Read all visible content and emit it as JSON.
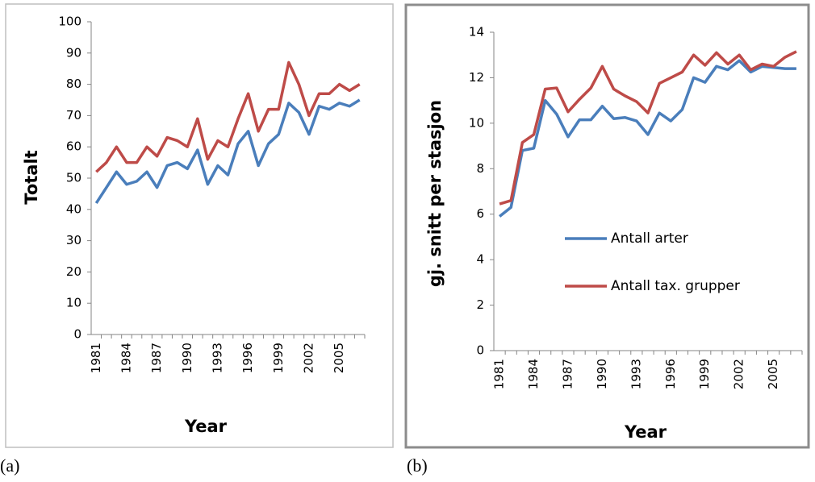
{
  "chart_data": [
    {
      "type": "line",
      "ylabel": "Totalt",
      "xlabel": "Year",
      "x": [
        1981,
        1982,
        1983,
        1984,
        1985,
        1986,
        1987,
        1988,
        1989,
        1990,
        1991,
        1992,
        1993,
        1994,
        1995,
        1996,
        1997,
        1998,
        1999,
        2000,
        2001,
        2002,
        2003,
        2004,
        2005,
        2006,
        2007
      ],
      "xlim": [
        1980.5,
        2007.5
      ],
      "xticks": [
        1981,
        1984,
        1987,
        1990,
        1993,
        1996,
        1999,
        2002,
        2005
      ],
      "ylim": [
        0,
        100
      ],
      "yticks": [
        0,
        10,
        20,
        30,
        40,
        50,
        60,
        70,
        80,
        90,
        100
      ],
      "series": [
        {
          "color": "#4a7ebb",
          "values": [
            42,
            47,
            52,
            48,
            49,
            52,
            47,
            54,
            55,
            53,
            59,
            48,
            54,
            51,
            61,
            65,
            54,
            61,
            64,
            74,
            71,
            64,
            73,
            72,
            74,
            73,
            75
          ]
        },
        {
          "color": "#be4b48",
          "values": [
            52,
            55,
            60,
            55,
            55,
            60,
            57,
            63,
            62,
            60,
            69,
            56,
            62,
            60,
            69,
            77,
            65,
            72,
            72,
            87,
            80,
            70,
            77,
            77,
            80,
            78,
            80
          ]
        }
      ]
    },
    {
      "type": "line",
      "ylabel": "gj. snitt per stasjon",
      "xlabel": "Year",
      "x": [
        1981,
        1982,
        1983,
        1984,
        1985,
        1986,
        1987,
        1988,
        1989,
        1990,
        1991,
        1992,
        1993,
        1994,
        1995,
        1996,
        1997,
        1998,
        1999,
        2000,
        2001,
        2002,
        2003,
        2004,
        2005,
        2006,
        2007
      ],
      "xlim": [
        1980.5,
        2007.5
      ],
      "xticks": [
        1981,
        1984,
        1987,
        1990,
        1993,
        1996,
        1999,
        2002,
        2005
      ],
      "ylim": [
        0,
        14
      ],
      "yticks": [
        0,
        2,
        4,
        6,
        8,
        10,
        12,
        14
      ],
      "legend": "center",
      "series": [
        {
          "name": "Antall arter",
          "color": "#4a7ebb",
          "values": [
            5.9,
            6.3,
            8.8,
            8.9,
            11.0,
            10.4,
            9.4,
            10.15,
            10.15,
            10.75,
            10.2,
            10.25,
            10.1,
            9.5,
            10.45,
            10.1,
            10.6,
            12.0,
            11.8,
            12.5,
            12.35,
            12.75,
            12.25,
            12.5,
            12.45,
            12.4,
            12.4
          ]
        },
        {
          "name": "Antall tax. grupper",
          "color": "#be4b48",
          "values": [
            6.45,
            6.6,
            9.15,
            9.5,
            11.5,
            11.55,
            10.5,
            11.05,
            11.55,
            12.5,
            11.5,
            11.2,
            10.95,
            10.45,
            11.75,
            12.0,
            12.25,
            13.0,
            12.55,
            13.1,
            12.6,
            13.0,
            12.35,
            12.6,
            12.5,
            12.9,
            13.15
          ]
        }
      ]
    }
  ],
  "captions": [
    "(a)",
    "(b)"
  ]
}
